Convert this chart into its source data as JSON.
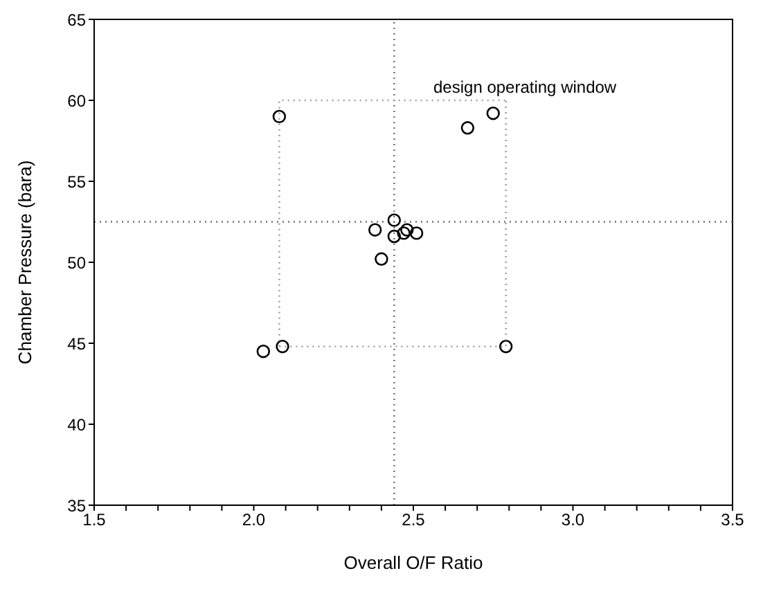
{
  "chart_data": {
    "type": "scatter",
    "xlabel": "Overall O/F Ratio",
    "ylabel": "Chamber Pressure (bara)",
    "annotations": [
      "design operating window"
    ],
    "series": [
      {
        "color": "#000000",
        "marker": "circle",
        "x": [
          2.08,
          2.03,
          2.09,
          2.79,
          2.67,
          2.75,
          2.44,
          2.38,
          2.44,
          2.47,
          2.48,
          2.51,
          2.4
        ],
        "values": [
          59.0,
          44.5,
          44.8,
          44.8,
          58.3,
          59.2,
          52.6,
          52.0,
          51.6,
          51.8,
          52.0,
          51.8,
          50.2
        ]
      },
      {
        "type": "line",
        "color": "#a0a0a0",
        "line_style": "dotted",
        "x": [
          2.08,
          2.08,
          2.79
        ],
        "values": [
          44.8,
          60,
          60
        ]
      },
      {
        "type": "line",
        "color": "#a0a0a0",
        "line_style": "dotted",
        "x": [
          2.08,
          2.79,
          2.79
        ],
        "values": [
          44.8,
          44.8,
          60
        ]
      }
    ],
    "ref_lines": [
      {
        "axis": "x",
        "value": 2.44,
        "color": "#707070",
        "line_style": "dotted"
      },
      {
        "axis": "y",
        "value": 52.5,
        "color": "#707070",
        "line_style": "dotted"
      }
    ],
    "xlim": [
      1.5,
      3.5
    ],
    "ylim": [
      35,
      65
    ],
    "xticks": [
      {
        "value": 1.5,
        "label": "1.5"
      },
      {
        "value": 1.6,
        "label": null
      },
      {
        "value": 1.7,
        "label": null
      },
      {
        "value": 1.8,
        "label": null
      },
      {
        "value": 1.9,
        "label": null
      },
      {
        "value": 2.0,
        "label": "2.0"
      },
      {
        "value": 2.1,
        "label": null
      },
      {
        "value": 2.2,
        "label": null
      },
      {
        "value": 2.3,
        "label": null
      },
      {
        "value": 2.4,
        "label": null
      },
      {
        "value": 2.5,
        "label": "2.5"
      },
      {
        "value": 2.6,
        "label": null
      },
      {
        "value": 2.7,
        "label": null
      },
      {
        "value": 2.8,
        "label": null
      },
      {
        "value": 2.9,
        "label": null
      },
      {
        "value": 3.0,
        "label": "3.0"
      },
      {
        "value": 3.1,
        "label": null
      },
      {
        "value": 3.2,
        "label": null
      },
      {
        "value": 3.3,
        "label": null
      },
      {
        "value": 3.4,
        "label": null
      },
      {
        "value": 3.5,
        "label": "3.5"
      }
    ],
    "yticks": [
      35,
      40,
      45,
      50,
      55,
      60,
      65
    ],
    "grid": false
  }
}
